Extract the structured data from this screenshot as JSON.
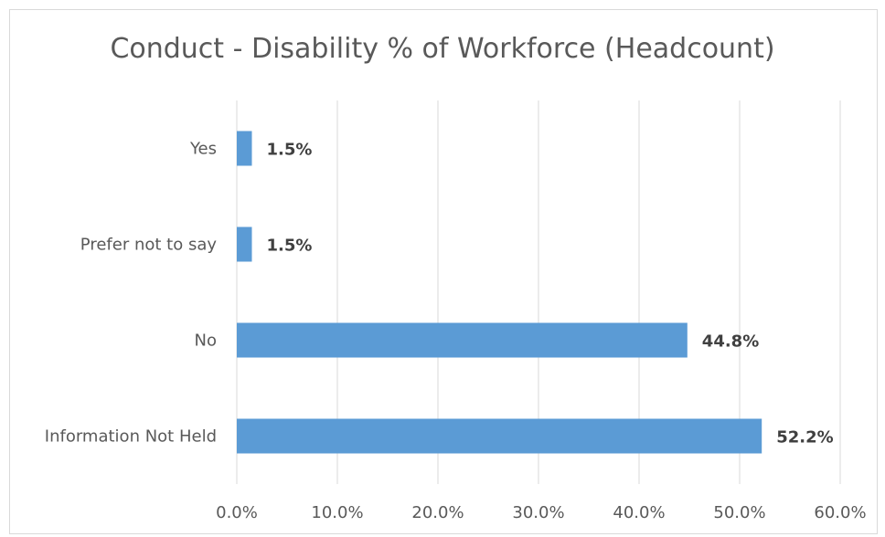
{
  "chart_data": {
    "type": "bar",
    "orientation": "horizontal",
    "title": "Conduct  - Disability % of Workforce (Headcount)",
    "categories": [
      "Yes",
      "Prefer not to say",
      "No",
      "Information Not Held"
    ],
    "values": [
      1.5,
      1.5,
      44.8,
      52.2
    ],
    "data_labels": [
      "1.5%",
      "1.5%",
      "44.8%",
      "52.2%"
    ],
    "x_ticks": [
      0,
      10,
      20,
      30,
      40,
      50,
      60
    ],
    "x_tick_labels": [
      "0.0%",
      "10.0%",
      "20.0%",
      "30.0%",
      "40.0%",
      "50.0%",
      "60.0%"
    ],
    "xlim": [
      0,
      60
    ],
    "xlabel": "",
    "ylabel": "",
    "grid": "vertical",
    "legend": "none",
    "bar_color": "#5b9bd5",
    "grid_color": "#d9d9d9"
  }
}
